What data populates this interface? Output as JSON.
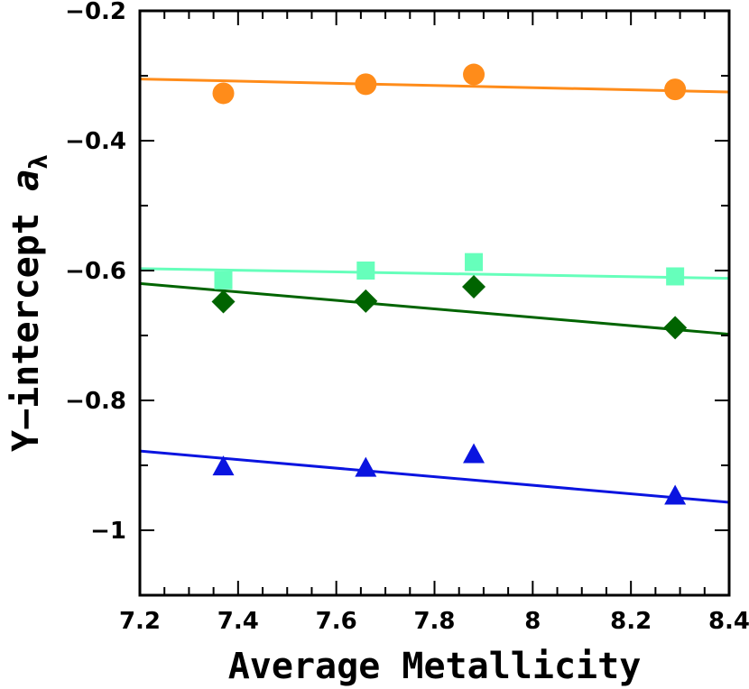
{
  "chart_data": {
    "type": "scatter",
    "xlabel": "Average Metallicity",
    "ylabel": {
      "main": "Y−intercept ",
      "var": "a",
      "sub": "λ"
    },
    "xlim": [
      7.2,
      8.4
    ],
    "ylim": [
      -1.1,
      -0.2
    ],
    "xticks": [
      7.2,
      7.4,
      7.6,
      7.8,
      8,
      8.2,
      8.4
    ],
    "xtick_labels": [
      "7.2",
      "7.4",
      "7.6",
      "7.8",
      "8",
      "8.2",
      "8.4"
    ],
    "yticks": [
      -0.2,
      -0.4,
      -0.6,
      -0.8,
      -1
    ],
    "ytick_labels": [
      "−0.2",
      "−0.4",
      "−0.6",
      "−0.8",
      "−1"
    ],
    "x": [
      7.37,
      7.66,
      7.88,
      8.29
    ],
    "series": [
      {
        "marker": "circle",
        "color": "#ff8c1a",
        "values": [
          -0.327,
          -0.313,
          -0.298,
          -0.321
        ],
        "fit": [
          [
            7.2,
            -0.305
          ],
          [
            8.4,
            -0.325
          ]
        ]
      },
      {
        "marker": "square",
        "color": "#66ffbb",
        "values": [
          -0.615,
          -0.6,
          -0.587,
          -0.609
        ],
        "fit": [
          [
            7.2,
            -0.597
          ],
          [
            8.4,
            -0.612
          ]
        ]
      },
      {
        "marker": "diamond",
        "color": "#006400",
        "values": [
          -0.648,
          -0.647,
          -0.625,
          -0.688
        ],
        "fit": [
          [
            7.2,
            -0.62
          ],
          [
            8.4,
            -0.698
          ]
        ]
      },
      {
        "marker": "triangle",
        "color": "#0a14e0",
        "values": [
          -0.903,
          -0.905,
          -0.884,
          -0.948
        ],
        "fit": [
          [
            7.2,
            -0.878
          ],
          [
            8.4,
            -0.957
          ]
        ]
      }
    ]
  }
}
